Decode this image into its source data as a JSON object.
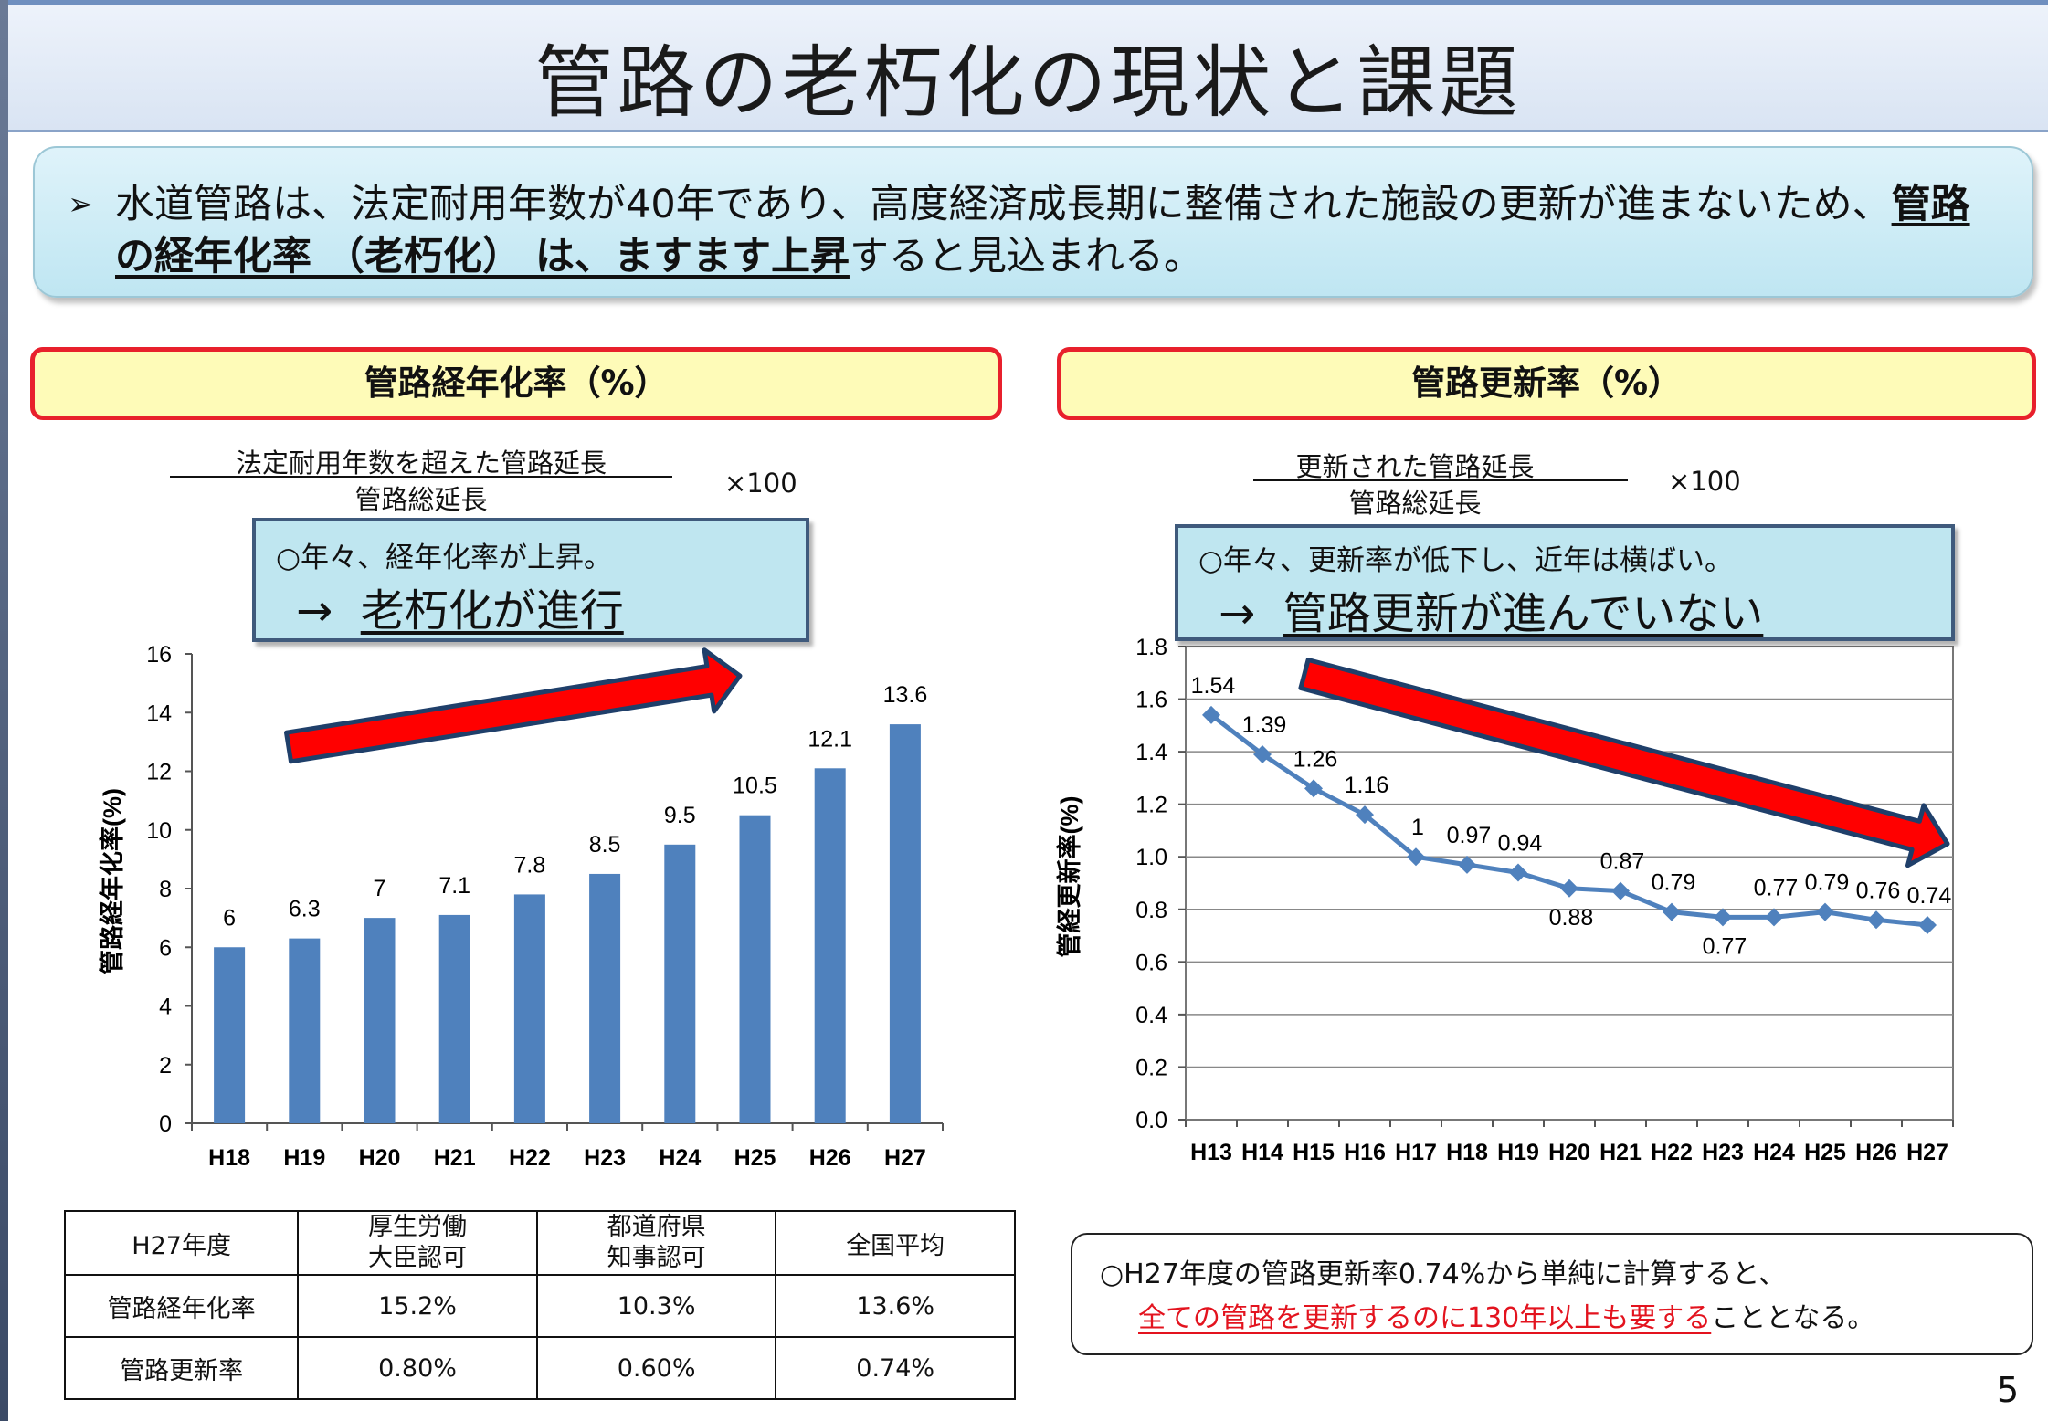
{
  "title": "管路の老朽化の現状と課題",
  "lead": {
    "bullet": "➢",
    "text_before": "水道管路は、法定耐用年数が40年であり、高度経済成長期に整備された施設の更新が進まないため、",
    "text_underlined": "管路の経年化率 （老朽化） は、ますます上昇",
    "text_after": "すると見込まれる。"
  },
  "left_panel": {
    "header": "管路経年化率（%）",
    "numerator": "法定耐用年数を超えた管路延長",
    "denominator": "管路総延長",
    "multiplier": "×100",
    "callout_line1": "○年々、経年化率が上昇。",
    "callout_arrow": "→",
    "callout_line2": "老朽化が進行"
  },
  "right_panel": {
    "header": "管路更新率（%）",
    "numerator": "更新された管路延長",
    "denominator": "管路総延長",
    "multiplier": "×100",
    "callout_line1": "○年々、更新率が低下し、近年は横ばい。",
    "callout_arrow": "→",
    "callout_line2": "管路更新が進んでいない"
  },
  "chart_data": [
    {
      "type": "bar",
      "title": "",
      "ylabel": "管路経年化率(%)",
      "xlabel": "",
      "categories": [
        "H18",
        "H19",
        "H20",
        "H21",
        "H22",
        "H23",
        "H24",
        "H25",
        "H26",
        "H27"
      ],
      "values": [
        6,
        6.3,
        7,
        7.1,
        7.8,
        8.5,
        9.5,
        10.5,
        12.1,
        13.6
      ],
      "value_labels": [
        "6",
        "6.3",
        "7",
        "7.1",
        "7.8",
        "8.5",
        "9.5",
        "10.5",
        "12.1",
        "13.6"
      ],
      "ylim": [
        0,
        16
      ],
      "yticks": [
        "0",
        "2",
        "4",
        "6",
        "8",
        "10",
        "12",
        "14",
        "16"
      ],
      "grid": false,
      "color": "#4f81bd",
      "trend_arrow": "up"
    },
    {
      "type": "line",
      "title": "",
      "ylabel": "管経更新率(%)",
      "xlabel": "",
      "categories": [
        "H13",
        "H14",
        "H15",
        "H16",
        "H17",
        "H18",
        "H19",
        "H20",
        "H21",
        "H22",
        "H23",
        "H24",
        "H25",
        "H26",
        "H27"
      ],
      "values": [
        1.54,
        1.39,
        1.26,
        1.16,
        1.0,
        0.97,
        0.94,
        0.88,
        0.87,
        0.79,
        0.77,
        0.77,
        0.79,
        0.76,
        0.74
      ],
      "value_labels": [
        "1.54",
        "1.39",
        "1.26",
        "1.16",
        "1",
        "0.97",
        "0.94",
        "0.88",
        "0.87",
        "0.79",
        "0.77",
        "0.77",
        "0.79",
        "0.76",
        "0.74"
      ],
      "ylim": [
        0,
        1.8
      ],
      "yticks": [
        "0.0",
        "0.2",
        "0.4",
        "0.6",
        "0.8",
        "1.0",
        "1.2",
        "1.4",
        "1.6",
        "1.8"
      ],
      "grid": true,
      "color": "#4f81bd",
      "trend_arrow": "down"
    }
  ],
  "table": {
    "header": [
      "H27年度",
      "厚生労働\n大臣認可",
      "都道府県\n知事認可",
      "全国平均"
    ],
    "rows": [
      [
        "管路経年化率",
        "15.2%",
        "10.3%",
        "13.6%"
      ],
      [
        "管路更新率",
        "0.80%",
        "0.60%",
        "0.74%"
      ]
    ]
  },
  "note": {
    "line1": "○H27年度の管路更新率0.74%から単純に計算すると、",
    "line2_red": "全ての管路を更新するのに130年以上も要する",
    "line2_rest": "こととなる。"
  },
  "page_number": "5",
  "colors": {
    "arrow_red": "#ff0000",
    "arrow_border": "#1f3f6a",
    "bar": "#4f81bd"
  }
}
